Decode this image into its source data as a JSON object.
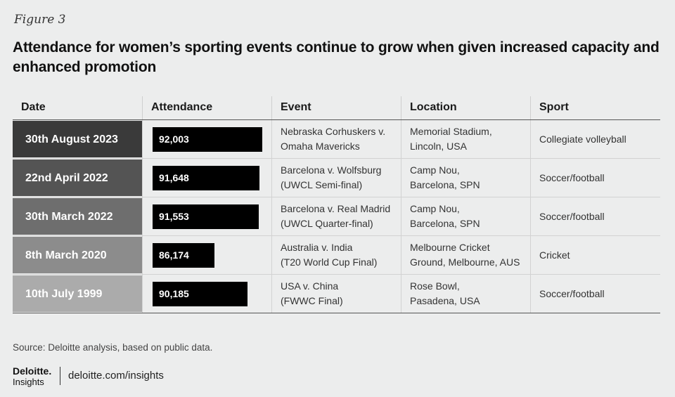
{
  "figure_label": "Figure 3",
  "title": "Attendance for women’s sporting events continue to grow when given increased capacity and enhanced promotion",
  "chart_data": {
    "type": "table",
    "columns": [
      "Date",
      "Attendance",
      "Event",
      "Location",
      "Sport"
    ],
    "rows": [
      {
        "date": "30th August 2023",
        "attendance": 92003,
        "attendance_label": "92,003",
        "event": [
          "Nebraska Corhuskers v.",
          "Omaha Mavericks"
        ],
        "location": [
          "Memorial Stadium,",
          "Lincoln, USA"
        ],
        "sport": "Collegiate volleyball",
        "date_color": "#3a3a3a"
      },
      {
        "date": "22nd April 2022",
        "attendance": 91648,
        "attendance_label": "91,648",
        "event": [
          "Barcelona v. Wolfsburg",
          "(UWCL Semi-final)"
        ],
        "location": [
          "Camp Nou,",
          "Barcelona, SPN"
        ],
        "sport": "Soccer/football",
        "date_color": "#545454"
      },
      {
        "date": "30th March 2022",
        "attendance": 91553,
        "attendance_label": "91,553",
        "event": [
          "Barcelona v. Real Madrid",
          "(UWCL Quarter-final)"
        ],
        "location": [
          "Camp Nou,",
          "Barcelona, SPN"
        ],
        "sport": "Soccer/football",
        "date_color": "#6e6e6e"
      },
      {
        "date": "8th March 2020",
        "attendance": 86174,
        "attendance_label": "86,174",
        "event": [
          "Australia v. India",
          "(T20 World Cup Final)"
        ],
        "location": [
          "Melbourne Cricket",
          "Ground, Melbourne, AUS"
        ],
        "sport": "Cricket",
        "date_color": "#8c8c8c"
      },
      {
        "date": "10th July 1999",
        "attendance": 90185,
        "attendance_label": "90,185",
        "event": [
          "USA v. China",
          "(FWWC Final)"
        ],
        "location": [
          "Rose Bowl,",
          "Pasadena, USA"
        ],
        "sport": "Soccer/football",
        "date_color": "#ababab"
      }
    ],
    "bar_color": "#000000"
  },
  "source": "Source: Deloitte analysis, based on public data.",
  "footer": {
    "brand": "Deloitte.",
    "brand_sub": "Insights",
    "site": "deloitte.com/insights"
  }
}
